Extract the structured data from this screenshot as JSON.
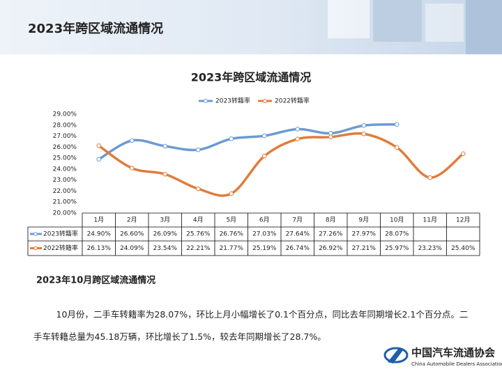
{
  "header": {
    "title": "2023年跨区域流通情况"
  },
  "chart_data": {
    "type": "line",
    "title": "2023年跨区域流通情况",
    "categories": [
      "1月",
      "2月",
      "3月",
      "4月",
      "5月",
      "6月",
      "7月",
      "8月",
      "9月",
      "10月",
      "11月",
      "12月"
    ],
    "series": [
      {
        "name": "2023转籍率",
        "color": "#6b9bd1",
        "values": [
          24.9,
          26.6,
          26.09,
          25.76,
          26.76,
          27.03,
          27.64,
          27.26,
          27.97,
          28.07,
          null,
          null
        ],
        "value_labels": [
          "24.90%",
          "26.60%",
          "26.09%",
          "25.76%",
          "26.76%",
          "27.03%",
          "27.64%",
          "27.26%",
          "27.97%",
          "28.07%",
          null,
          null
        ]
      },
      {
        "name": "2022转籍率",
        "color": "#e07c3a",
        "values": [
          26.13,
          24.09,
          23.54,
          22.21,
          21.77,
          25.19,
          26.74,
          26.92,
          27.21,
          25.97,
          23.23,
          25.4
        ],
        "value_labels": [
          "26.13%",
          "24.09%",
          "23.54%",
          "22.21%",
          "21.77%",
          "25.19%",
          "26.74%",
          "26.92%",
          "27.21%",
          "25.97%",
          "23.23%",
          "25.40%"
        ]
      }
    ],
    "ylim": [
      20,
      29
    ],
    "yticks": [
      {
        "value": 20,
        "label": "20.00%"
      },
      {
        "value": 21,
        "label": "21.00%"
      },
      {
        "value": 22,
        "label": "22.00%"
      },
      {
        "value": 23,
        "label": "23.00%"
      },
      {
        "value": 24,
        "label": "24.00%"
      },
      {
        "value": 25,
        "label": "25.00%"
      },
      {
        "value": 26,
        "label": "26.00%"
      },
      {
        "value": 27,
        "label": "27.00%"
      },
      {
        "value": 28,
        "label": "28.00%"
      },
      {
        "value": 29,
        "label": "29.00%"
      }
    ],
    "grid": false,
    "smooth": true,
    "legend": "top"
  },
  "section": {
    "title": "2023年10月跨区域流通情况",
    "text": "10月份，二手车转籍率为28.07%，环比上月小幅增长了0.1个百分点，同比去年同期增长2.1个百分点。二手车转籍总量为45.18万辆，环比增长了1.5%，较去年同期增长了28.7%。"
  },
  "logo": {
    "name": "中国汽车流通协会",
    "subtitle": "China Automobile Dealers Association"
  }
}
